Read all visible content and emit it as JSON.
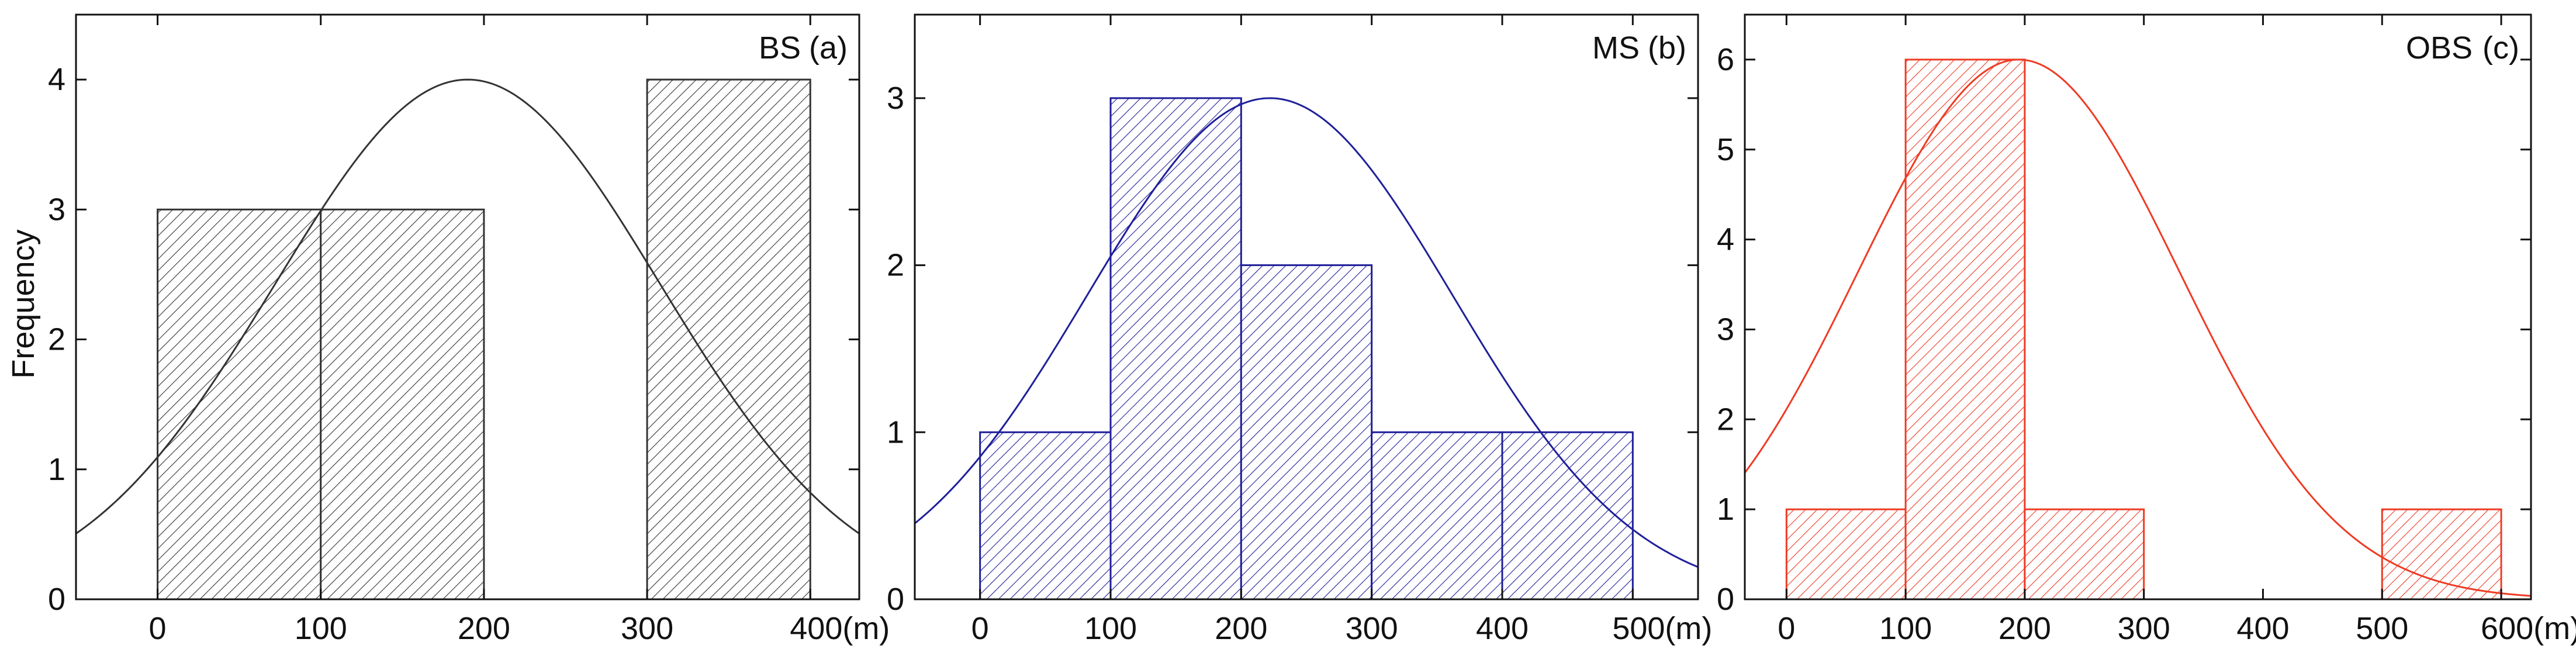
{
  "figure": {
    "ylabel": "Frequency",
    "x_unit": "(m)"
  },
  "chart_data": [
    {
      "type": "bar",
      "panel": "(a)",
      "title": "BS",
      "color": "#333333",
      "bin_edges": [
        0,
        100,
        200,
        300,
        400
      ],
      "categories": [
        "0-100",
        "100-200",
        "200-300",
        "300-400"
      ],
      "values": [
        3,
        3,
        0,
        4
      ],
      "xlim": [
        -50,
        430
      ],
      "ylim": [
        0,
        4.5
      ],
      "xticks": [
        0,
        100,
        200,
        300,
        400
      ],
      "xtick_labels": [
        "0",
        "100",
        "200",
        "300",
        "400(m)"
      ],
      "yticks": [
        0,
        1,
        2,
        3,
        4
      ],
      "ytick_labels": [
        "0",
        "1",
        "2",
        "3",
        "4"
      ],
      "fit": {
        "type": "normal",
        "mean": 190,
        "sd": 118,
        "peak": 4
      }
    },
    {
      "type": "bar",
      "panel": "(b)",
      "title": "MS",
      "color": "#1f1f9a",
      "bin_edges": [
        0,
        100,
        200,
        300,
        400,
        500
      ],
      "categories": [
        "0-100",
        "100-200",
        "200-300",
        "300-400",
        "400-500"
      ],
      "values": [
        1,
        3,
        2,
        1,
        1
      ],
      "xlim": [
        -50,
        550
      ],
      "ylim": [
        0,
        3.5
      ],
      "xticks": [
        0,
        100,
        200,
        300,
        400,
        500
      ],
      "xtick_labels": [
        "0",
        "100",
        "200",
        "300",
        "400",
        "500(m)"
      ],
      "yticks": [
        0,
        1,
        2,
        3
      ],
      "ytick_labels": [
        "0",
        "1",
        "2",
        "3"
      ],
      "fit": {
        "type": "normal",
        "mean": 222,
        "sd": 140,
        "peak": 3
      }
    },
    {
      "type": "bar",
      "panel": "(c)",
      "title": "OBS",
      "color": "#ee3b24",
      "bin_edges": [
        0,
        100,
        200,
        300,
        400,
        500,
        600
      ],
      "categories": [
        "0-100",
        "100-200",
        "200-300",
        "300-400",
        "400-500",
        "500-600"
      ],
      "values": [
        1,
        6,
        1,
        0,
        0,
        1
      ],
      "xlim": [
        -35,
        625
      ],
      "ylim": [
        0,
        6.5
      ],
      "xticks": [
        0,
        100,
        200,
        300,
        400,
        500,
        600
      ],
      "xtick_labels": [
        "0",
        "100",
        "200",
        "300",
        "400",
        "500",
        "600(m)"
      ],
      "yticks": [
        0,
        1,
        2,
        3,
        4,
        5,
        6
      ],
      "ytick_labels": [
        "0",
        "1",
        "2",
        "3",
        "4",
        "5",
        "6"
      ],
      "fit": {
        "type": "normal",
        "mean": 195,
        "sd": 135,
        "peak": 6
      }
    }
  ]
}
